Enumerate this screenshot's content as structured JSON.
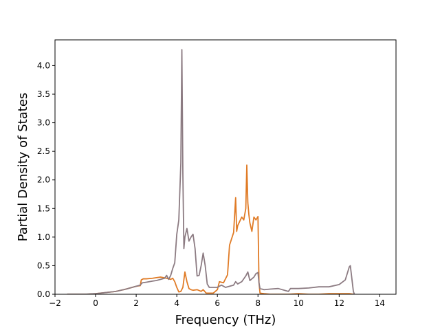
{
  "chart_data": {
    "type": "line",
    "title": "",
    "xlabel": "Frequency (THz)",
    "ylabel": "Partial Density of States",
    "xlim": [
      -2,
      14.8
    ],
    "ylim": [
      0,
      4.45
    ],
    "xticks": [
      -2,
      0,
      2,
      4,
      6,
      8,
      10,
      12,
      14
    ],
    "xtick_labels": [
      "−2",
      "0",
      "2",
      "4",
      "6",
      "8",
      "10",
      "12",
      "14"
    ],
    "yticks": [
      0,
      0.5,
      1.0,
      1.5,
      2.0,
      2.5,
      3.0,
      3.5,
      4.0
    ],
    "ytick_labels": [
      "0.0",
      "0.5",
      "1.0",
      "1.5",
      "2.0",
      "2.5",
      "3.0",
      "3.5",
      "4.0"
    ],
    "grid": false,
    "legend": false,
    "series": [
      {
        "color": "#e07b26",
        "x": [
          -1.4,
          -0.5,
          0.0,
          0.5,
          1.0,
          1.5,
          1.8,
          2.0,
          2.2,
          2.25,
          2.35,
          2.5,
          2.8,
          3.0,
          3.2,
          3.5,
          3.7,
          3.8,
          3.9,
          4.0,
          4.1,
          4.2,
          4.3,
          4.4,
          4.5,
          4.6,
          4.7,
          4.8,
          5.0,
          5.2,
          5.3,
          5.45,
          5.6,
          5.8,
          6.0,
          6.1,
          6.3,
          6.5,
          6.6,
          6.8,
          6.9,
          6.95,
          7.0,
          7.2,
          7.3,
          7.4,
          7.45,
          7.5,
          7.55,
          7.6,
          7.7,
          7.8,
          7.9,
          8.0,
          8.05,
          8.1,
          8.3,
          8.6,
          9.0,
          9.5,
          10.0,
          10.5,
          11.0,
          11.5,
          12.0,
          12.5,
          12.7,
          12.75
        ],
        "y": [
          0.0,
          0.0,
          0.01,
          0.03,
          0.05,
          0.09,
          0.12,
          0.14,
          0.15,
          0.25,
          0.27,
          0.27,
          0.28,
          0.29,
          0.3,
          0.28,
          0.26,
          0.28,
          0.22,
          0.12,
          0.04,
          0.05,
          0.12,
          0.39,
          0.22,
          0.1,
          0.08,
          0.07,
          0.08,
          0.05,
          0.08,
          0.02,
          0.02,
          0.02,
          0.08,
          0.22,
          0.2,
          0.34,
          0.86,
          1.08,
          1.69,
          1.1,
          1.2,
          1.35,
          1.3,
          1.5,
          2.26,
          1.6,
          1.4,
          1.25,
          1.1,
          1.35,
          1.3,
          1.36,
          0.2,
          0.02,
          0.01,
          0.0,
          0.0,
          0.0,
          0.01,
          0.0,
          0.0,
          0.01,
          0.01,
          0.01,
          0.0,
          0.0
        ]
      },
      {
        "color": "#8c7b82",
        "x": [
          -1.4,
          -0.5,
          0.0,
          0.5,
          1.0,
          1.5,
          1.8,
          2.0,
          2.2,
          2.3,
          2.5,
          2.8,
          3.0,
          3.2,
          3.4,
          3.5,
          3.6,
          3.7,
          3.8,
          3.9,
          4.0,
          4.1,
          4.2,
          4.25,
          4.3,
          4.35,
          4.4,
          4.5,
          4.6,
          4.7,
          4.8,
          4.9,
          5.0,
          5.1,
          5.2,
          5.3,
          5.4,
          5.5,
          5.6,
          5.8,
          6.0,
          6.2,
          6.4,
          6.6,
          6.8,
          6.9,
          7.0,
          7.2,
          7.4,
          7.5,
          7.6,
          7.8,
          7.9,
          8.0,
          8.05,
          8.1,
          8.3,
          8.6,
          9.0,
          9.5,
          9.6,
          10.0,
          10.5,
          11.0,
          11.5,
          12.0,
          12.3,
          12.5,
          12.55,
          12.6,
          12.7,
          12.75
        ],
        "y": [
          0.0,
          0.0,
          0.01,
          0.03,
          0.05,
          0.09,
          0.12,
          0.14,
          0.16,
          0.2,
          0.21,
          0.23,
          0.24,
          0.26,
          0.28,
          0.33,
          0.26,
          0.33,
          0.45,
          0.55,
          1.05,
          1.3,
          2.3,
          4.28,
          2.1,
          0.8,
          1.0,
          1.15,
          0.93,
          1.0,
          1.05,
          0.8,
          0.32,
          0.33,
          0.5,
          0.72,
          0.5,
          0.18,
          0.12,
          0.12,
          0.12,
          0.16,
          0.12,
          0.14,
          0.16,
          0.22,
          0.18,
          0.22,
          0.32,
          0.39,
          0.24,
          0.3,
          0.36,
          0.38,
          0.2,
          0.1,
          0.08,
          0.09,
          0.1,
          0.05,
          0.1,
          0.1,
          0.11,
          0.13,
          0.13,
          0.17,
          0.25,
          0.48,
          0.5,
          0.35,
          0.05,
          0.0
        ]
      }
    ]
  }
}
